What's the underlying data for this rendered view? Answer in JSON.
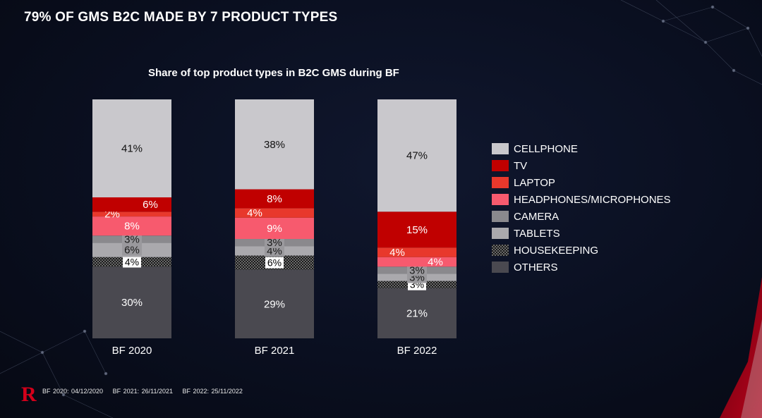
{
  "header": {
    "title": "79% OF GMS B2C MADE BY 7 PRODUCT TYPES"
  },
  "colors": {
    "cellphone": "#c9c8cc",
    "tv": "#c00000",
    "laptop": "#e8382c",
    "headphones": "#f75a6e",
    "camera": "#8a898d",
    "tablets": "#aaa9ad",
    "housekeeping": "#1a1a1a",
    "others": "#4a4950",
    "brand": "#d4001a"
  },
  "chart_data": {
    "type": "bar",
    "stacked": true,
    "title": "Share of top product types in B2C GMS during BF",
    "categories": [
      "BF 2020",
      "BF 2021",
      "BF 2022"
    ],
    "series": [
      {
        "name": "OTHERS",
        "values": [
          30,
          29,
          21
        ]
      },
      {
        "name": "HOUSEKEEPING",
        "values": [
          4,
          6,
          3
        ]
      },
      {
        "name": "TABLETS",
        "values": [
          6,
          4,
          3
        ]
      },
      {
        "name": "CAMERA",
        "values": [
          3,
          3,
          3
        ]
      },
      {
        "name": "HEADPHONES/MICROPHONES",
        "values": [
          8,
          9,
          4
        ]
      },
      {
        "name": "LAPTOP",
        "values": [
          2,
          4,
          4
        ]
      },
      {
        "name": "TV",
        "values": [
          6,
          8,
          15
        ]
      },
      {
        "name": "CELLPHONE",
        "values": [
          41,
          38,
          47
        ]
      }
    ],
    "value_suffix": "%",
    "legend": [
      "CELLPHONE",
      "TV",
      "LAPTOP",
      "HEADPHONES/MICROPHONES",
      "CAMERA",
      "TABLETS",
      "HOUSEKEEPING",
      "OTHERS"
    ],
    "ylim": [
      0,
      100
    ],
    "xlabel": "",
    "ylabel": ""
  },
  "footnote": {
    "items": [
      "BF 2020: 04/12/2020",
      "BF 2021: 26/11/2021",
      "BF 2022: 25/11/2022"
    ]
  },
  "logo": {
    "text": "R"
  }
}
